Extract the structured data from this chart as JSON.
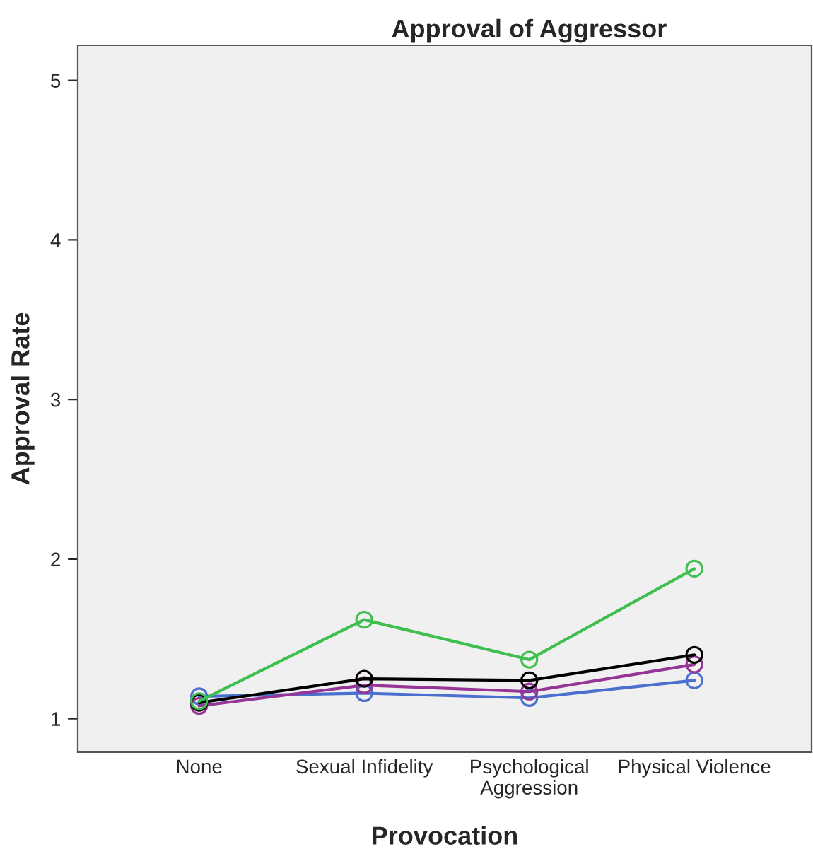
{
  "chart_data": {
    "type": "line",
    "title": "Approval of Aggressor",
    "xlabel": "Provocation",
    "ylabel": "Approval Rate",
    "categories": [
      "None",
      "Sexual Infidelity",
      "Psychological\nAggression",
      "Physical Violence"
    ],
    "series": [
      {
        "color": "#3fbf4f",
        "values": [
          1.11,
          1.62,
          1.37,
          1.94
        ]
      },
      {
        "color": "#000000",
        "values": [
          1.1,
          1.25,
          1.24,
          1.4
        ]
      },
      {
        "color": "#953595",
        "values": [
          1.08,
          1.21,
          1.17,
          1.34
        ]
      },
      {
        "color": "#4a6fcf",
        "values": [
          1.14,
          1.16,
          1.13,
          1.24
        ]
      }
    ],
    "ylim": [
      0.79,
      5.22
    ],
    "yticks": [
      1,
      2,
      3,
      4,
      5
    ],
    "grid": false,
    "legend": false,
    "marker": "circle",
    "line_style": "solid"
  }
}
